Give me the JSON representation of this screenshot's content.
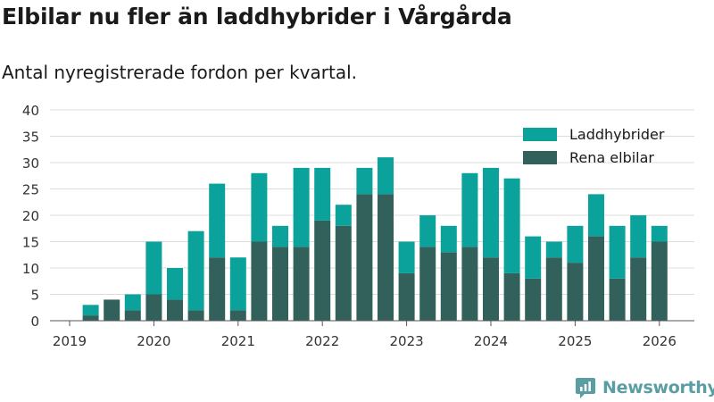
{
  "title": "Elbilar nu fler än laddhybrider i Vårgårda",
  "subtitle": "Antal nyregistrerade fordon per kvartal.",
  "brand": {
    "name": "Newsworthy",
    "icon": "newsworthy-logo-icon"
  },
  "colors": {
    "laddhybrider": "#0aa29b",
    "elbilar": "#32605b",
    "grid": "#dcdcdc",
    "axis": "#555555",
    "brand": "#5a9ea3"
  },
  "chart_data": {
    "type": "bar",
    "stacked": true,
    "categories": [
      "2019 Q2",
      "2019 Q3",
      "2019 Q4",
      "2020 Q1",
      "2020 Q2",
      "2020 Q3",
      "2020 Q4",
      "2021 Q1",
      "2021 Q2",
      "2021 Q3",
      "2021 Q4",
      "2022 Q1",
      "2022 Q2",
      "2022 Q3",
      "2022 Q4",
      "2023 Q1",
      "2023 Q2",
      "2023 Q3",
      "2023 Q4",
      "2024 Q1",
      "2024 Q2",
      "2024 Q3",
      "2024 Q4",
      "2025 Q1",
      "2025 Q2",
      "2025 Q3",
      "2025 Q4",
      "2026 Q1"
    ],
    "series": [
      {
        "name": "Rena elbilar",
        "values": [
          1,
          4,
          2,
          5,
          4,
          2,
          12,
          2,
          15,
          14,
          14,
          19,
          18,
          24,
          24,
          9,
          14,
          13,
          14,
          12,
          9,
          8,
          12,
          11,
          16,
          8,
          12,
          15
        ]
      },
      {
        "name": "Laddhybrider",
        "values": [
          2,
          0,
          3,
          10,
          6,
          15,
          14,
          10,
          13,
          4,
          15,
          10,
          4,
          5,
          7,
          6,
          6,
          5,
          14,
          17,
          18,
          8,
          3,
          7,
          8,
          10,
          8,
          3
        ]
      }
    ],
    "legend": [
      "Laddhybrider",
      "Rena elbilar"
    ],
    "legend_position": "top-right",
    "x_ticks": [
      "2019",
      "2020",
      "2021",
      "2022",
      "2023",
      "2024",
      "2025",
      "2026"
    ],
    "y_ticks": [
      0,
      5,
      10,
      15,
      20,
      25,
      30,
      35,
      40
    ],
    "ylim": [
      0,
      40
    ],
    "grid": true,
    "xlabel": "",
    "ylabel": ""
  }
}
